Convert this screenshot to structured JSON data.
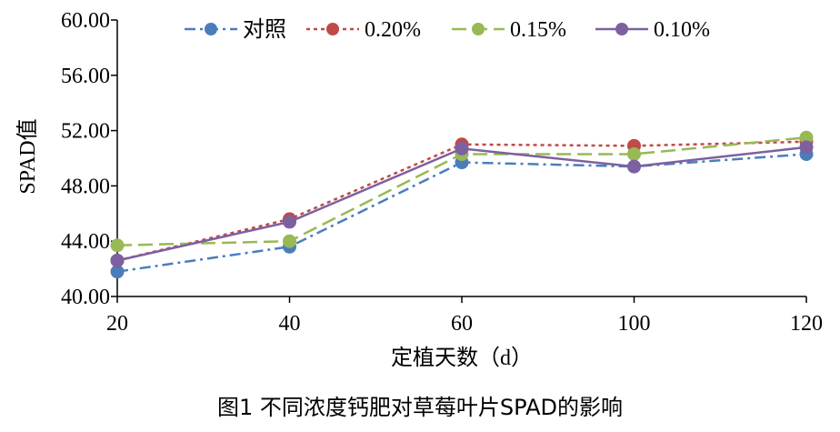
{
  "caption": "图1   不同浓度钙肥对草莓叶片SPAD的影响",
  "chart_data": {
    "type": "line",
    "xlabel": "定植天数（d）",
    "ylabel": "SPAD值",
    "categories": [
      "20",
      "40",
      "60",
      "100",
      "120"
    ],
    "ylim": [
      40,
      60
    ],
    "yticks": [
      "40.00",
      "44.00",
      "48.00",
      "52.00",
      "56.00",
      "60.00"
    ],
    "legend_position": "top",
    "grid": false,
    "series": [
      {
        "name": "对照",
        "values": [
          41.8,
          43.6,
          49.7,
          49.4,
          50.3
        ],
        "color": "#4A7EBB",
        "dash": "dashdot"
      },
      {
        "name": "0.20%",
        "values": [
          42.6,
          45.6,
          51.0,
          50.9,
          51.2
        ],
        "color": "#BE4B48",
        "dash": "dot"
      },
      {
        "name": "0.15%",
        "values": [
          43.7,
          44.0,
          50.3,
          50.3,
          51.5
        ],
        "color": "#98B954",
        "dash": "dash"
      },
      {
        "name": "0.10%",
        "values": [
          42.6,
          45.4,
          50.7,
          49.4,
          50.8
        ],
        "color": "#7D60A0",
        "dash": "solid"
      }
    ]
  }
}
